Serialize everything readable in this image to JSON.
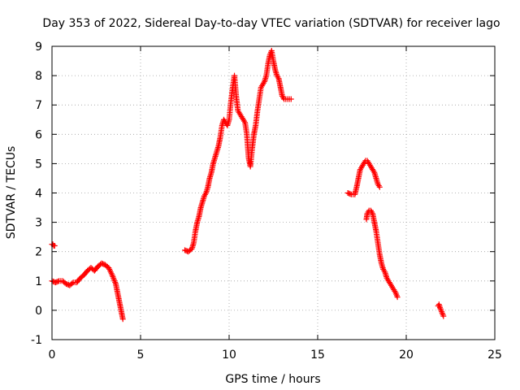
{
  "chart_data": {
    "type": "scatter",
    "title": "Day 353 of 2022, Sidereal Day-to-day VTEC variation (SDTVAR) for receiver lago",
    "xlabel": "GPS time / hours",
    "ylabel": "SDTVAR / TECUs",
    "xlim": [
      0,
      25
    ],
    "ylim": [
      -1,
      9
    ],
    "xticks": [
      0,
      5,
      10,
      15,
      20,
      25
    ],
    "yticks": [
      -1,
      0,
      1,
      2,
      3,
      4,
      5,
      6,
      7,
      8,
      9
    ],
    "grid": true,
    "marker": "+",
    "color": "#ff0000",
    "series": [
      {
        "name": "SDTVAR",
        "segments": [
          {
            "x": [
              0.0,
              0.05,
              0.1,
              0.15
            ],
            "y": [
              2.25,
              2.25,
              2.2,
              2.2
            ]
          },
          {
            "x": [
              0.0,
              0.2,
              0.4,
              0.6,
              0.8,
              1.0,
              1.2,
              1.4,
              1.6,
              1.8,
              2.0,
              2.2,
              2.4,
              2.6,
              2.8,
              3.0,
              3.2,
              3.4,
              3.6,
              3.7,
              3.8,
              3.9,
              4.0
            ],
            "y": [
              1.0,
              0.95,
              1.0,
              1.0,
              0.9,
              0.85,
              0.95,
              0.95,
              1.1,
              1.2,
              1.35,
              1.45,
              1.35,
              1.5,
              1.6,
              1.55,
              1.45,
              1.2,
              0.9,
              0.6,
              0.3,
              0.0,
              -0.3
            ]
          },
          {
            "x": [
              7.5,
              7.7,
              7.9,
              8.0,
              8.1,
              8.2,
              8.3,
              8.4,
              8.5,
              8.6,
              8.7,
              8.8,
              8.9,
              9.0,
              9.1,
              9.2,
              9.3,
              9.4,
              9.5,
              9.6,
              9.7,
              9.8,
              9.9,
              10.0,
              10.1,
              10.2,
              10.3,
              10.4,
              10.5,
              10.6,
              10.7,
              10.8,
              10.9,
              11.0,
              11.1,
              11.2,
              11.3,
              11.4,
              11.5,
              11.6,
              11.7,
              11.8,
              11.9,
              12.0,
              12.1,
              12.2,
              12.3,
              12.4,
              12.5,
              12.6,
              12.7,
              12.8,
              12.9,
              13.0,
              13.1,
              13.2,
              13.3,
              13.4,
              13.5
            ],
            "y": [
              2.05,
              2.0,
              2.1,
              2.3,
              2.7,
              3.0,
              3.2,
              3.5,
              3.7,
              3.9,
              4.0,
              4.2,
              4.5,
              4.7,
              5.0,
              5.2,
              5.4,
              5.6,
              5.9,
              6.3,
              6.5,
              6.4,
              6.3,
              6.5,
              7.1,
              7.6,
              8.0,
              7.3,
              6.8,
              6.7,
              6.6,
              6.5,
              6.4,
              6.0,
              5.2,
              4.9,
              5.5,
              6.0,
              6.3,
              6.8,
              7.2,
              7.6,
              7.7,
              7.8,
              8.0,
              8.4,
              8.7,
              8.85,
              8.5,
              8.2,
              8.0,
              7.9,
              7.6,
              7.3,
              7.2,
              7.2,
              7.2,
              7.2,
              7.2
            ]
          },
          {
            "x": [
              16.7,
              16.9,
              17.1,
              17.2,
              17.3,
              17.4,
              17.5,
              17.6,
              17.7,
              17.8,
              17.9,
              18.0,
              18.1,
              18.2,
              18.3,
              18.4,
              18.5
            ],
            "y": [
              4.0,
              3.95,
              3.95,
              4.2,
              4.5,
              4.8,
              4.9,
              5.0,
              5.1,
              5.1,
              5.0,
              4.9,
              4.8,
              4.7,
              4.5,
              4.3,
              4.2
            ]
          },
          {
            "x": [
              17.75,
              17.8,
              17.9,
              18.0,
              18.1,
              18.2,
              18.3,
              18.4,
              18.5,
              18.6,
              18.7,
              18.8,
              18.9,
              19.0,
              19.1,
              19.2,
              19.3,
              19.4,
              19.5
            ],
            "y": [
              3.1,
              3.3,
              3.4,
              3.4,
              3.3,
              3.0,
              2.7,
              2.3,
              1.9,
              1.6,
              1.4,
              1.3,
              1.1,
              1.0,
              0.9,
              0.8,
              0.7,
              0.6,
              0.45
            ]
          },
          {
            "x": [
              21.8,
              21.85,
              21.9,
              22.0,
              22.1
            ],
            "y": [
              0.15,
              0.2,
              0.1,
              -0.05,
              -0.2
            ]
          }
        ]
      }
    ]
  }
}
